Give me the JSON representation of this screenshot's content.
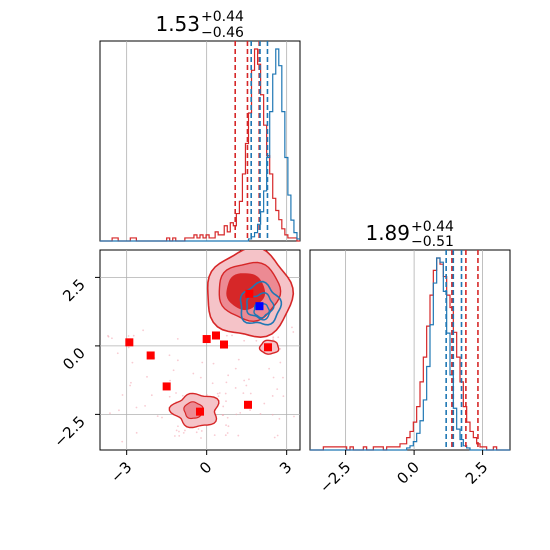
{
  "chart_data": {
    "type": "corner",
    "parameters": [
      "",
      ""
    ],
    "x_ticks": [
      "−3",
      "0",
      "3"
    ],
    "y_ticks": [
      "2.5",
      "0.0",
      "−2.5"
    ],
    "p1_ticks": [
      "−2.5",
      "0.0",
      "2.5"
    ],
    "titles": {
      "p0": {
        "median": "1.53",
        "plus": "+0.44",
        "minus": "−0.46"
      },
      "p1": {
        "median": "1.89",
        "plus": "+0.44",
        "minus": "−0.51"
      }
    },
    "ranges": {
      "p0": [
        -4,
        3.5
      ],
      "p1": [
        -3.8,
        3.5
      ]
    },
    "series": [
      {
        "name": "red",
        "color": "#d62728",
        "p0_quantiles": [
          1.07,
          1.53,
          1.97
        ],
        "p1_quantiles": [
          1.38,
          1.89,
          2.33
        ]
      },
      {
        "name": "blue",
        "color": "#1f77b4",
        "p0_quantiles": [
          1.67,
          2.0,
          2.28
        ],
        "p1_quantiles": [
          1.17,
          1.43,
          1.73
        ]
      }
    ],
    "hist_red_p0": [
      0,
      0,
      0,
      0,
      1,
      1,
      0,
      0,
      0,
      0,
      1,
      1,
      0,
      0,
      0,
      0,
      0,
      0,
      0,
      0,
      0,
      0,
      1,
      0,
      1,
      0,
      0,
      0,
      1,
      1,
      1,
      2,
      1,
      2,
      1,
      2,
      1,
      1,
      3,
      2,
      2,
      5,
      3,
      6,
      5,
      9,
      13,
      22,
      32,
      42,
      56,
      63,
      58,
      48,
      38,
      28,
      22,
      14,
      10,
      7,
      4,
      2,
      1,
      1,
      1,
      0
    ],
    "hist_blue_p0": [
      0,
      0,
      0,
      0,
      0,
      0,
      0,
      0,
      0,
      0,
      0,
      0,
      0,
      0,
      0,
      0,
      0,
      0,
      0,
      0,
      0,
      0,
      0,
      0,
      0,
      0,
      0,
      0,
      0,
      0,
      0,
      0,
      0,
      0,
      0,
      0,
      0,
      0,
      0,
      0,
      0,
      0,
      0,
      0,
      0,
      0,
      0,
      0,
      0,
      1,
      2,
      4,
      8,
      14,
      24,
      40,
      62,
      80,
      92,
      84,
      62,
      40,
      22,
      10,
      4,
      1
    ],
    "hist_red_p1": [
      0,
      0,
      0,
      0,
      1,
      1,
      1,
      1,
      1,
      1,
      1,
      0,
      1,
      0,
      0,
      0,
      1,
      0,
      0,
      1,
      1,
      1,
      0,
      1,
      1,
      1,
      1,
      2,
      2,
      4,
      6,
      9,
      14,
      22,
      30,
      40,
      50,
      58,
      62,
      60,
      56,
      50,
      46,
      38,
      30,
      22,
      14,
      9,
      6,
      4,
      2,
      1,
      1,
      0,
      0,
      1,
      0,
      0,
      0,
      0
    ],
    "hist_blue_p1": [
      0,
      0,
      0,
      0,
      0,
      0,
      0,
      0,
      0,
      0,
      0,
      0,
      0,
      0,
      0,
      0,
      0,
      0,
      0,
      0,
      0,
      0,
      0,
      0,
      0,
      0,
      0,
      0,
      0,
      1,
      2,
      4,
      8,
      14,
      24,
      40,
      60,
      80,
      92,
      90,
      76,
      56,
      36,
      20,
      10,
      5,
      2,
      1,
      0,
      0,
      0,
      0,
      0,
      0,
      0,
      0,
      0,
      0,
      0,
      0
    ],
    "markers_red": [
      [
        -2.9,
        0.13
      ],
      [
        -2.1,
        -0.35
      ],
      [
        -1.5,
        -1.48
      ],
      [
        0.0,
        0.25
      ],
      [
        0.35,
        0.38
      ],
      [
        0.65,
        0.05
      ],
      [
        -0.25,
        -2.4
      ],
      [
        1.55,
        -2.15
      ],
      [
        2.3,
        -0.05
      ],
      [
        1.6,
        1.9
      ]
    ],
    "marker_blue": [
      1.98,
      1.45
    ]
  }
}
